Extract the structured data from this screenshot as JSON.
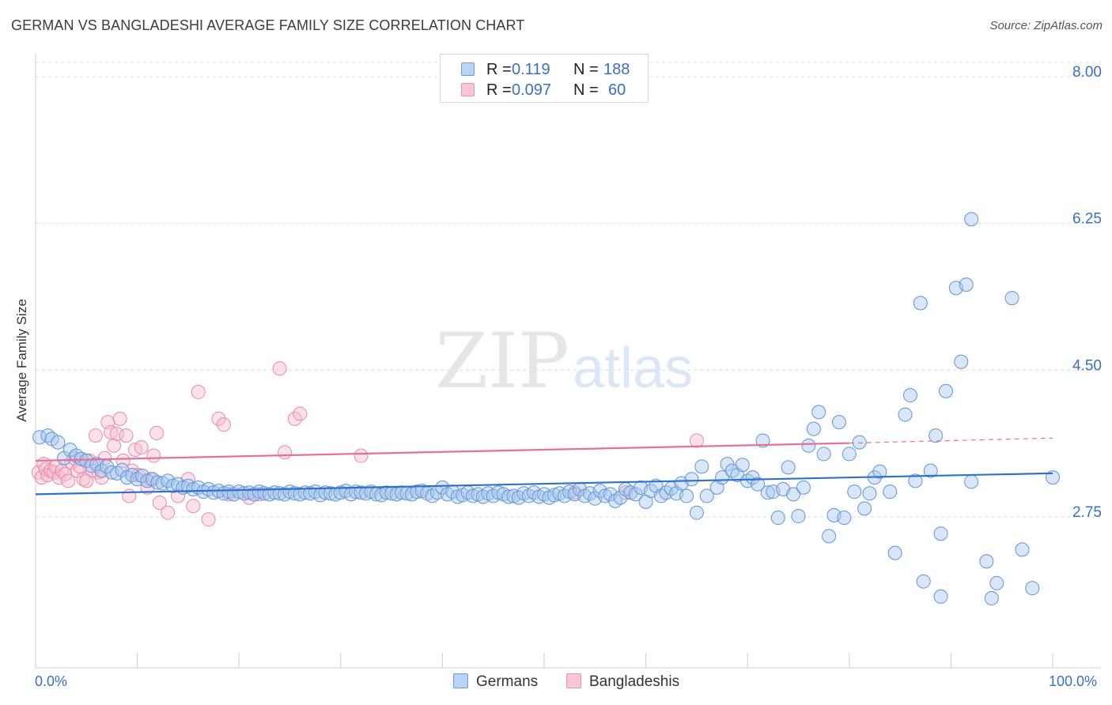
{
  "title": "GERMAN VS BANGLADESHI AVERAGE FAMILY SIZE CORRELATION CHART",
  "source": "Source: ZipAtlas.com",
  "watermark": {
    "part1": "ZIP",
    "part2": "atlas"
  },
  "legend_top": [
    {
      "r_label": "R =",
      "r_value": "0.119",
      "n_label": "N =",
      "n_value": "188"
    },
    {
      "r_label": "R =",
      "r_value": "0.097",
      "n_label": "N =",
      "n_value": "60"
    }
  ],
  "legend_bottom": [
    {
      "label": "Germans"
    },
    {
      "label": "Bangladeshis"
    }
  ],
  "x_labels": {
    "min": "0.0%",
    "max": "100.0%"
  },
  "colors": {
    "blue_fill": "#a8c8f0",
    "blue_stroke": "#5f95d6",
    "blue_line": "#2f6fce",
    "pink_fill": "#f7bfd0",
    "pink_stroke": "#e88aa8",
    "pink_line": "#e4719a",
    "axis_text": "#3a6fc4",
    "grid": "#dcdcdc"
  },
  "chart_data": {
    "type": "scatter",
    "title": "GERMAN VS BANGLADESHI AVERAGE FAMILY SIZE CORRELATION CHART",
    "xlabel": "",
    "ylabel": "Average Family Size",
    "xlim": [
      0,
      100
    ],
    "ylim": [
      1.1,
      8.3
    ],
    "y_ticks": [
      2.75,
      4.5,
      6.25,
      8.0
    ],
    "y_tick_labels": [
      "2.75",
      "4.50",
      "6.25",
      "8.00"
    ],
    "series": [
      {
        "name": "Germans",
        "r": 0.119,
        "n": 188,
        "trend": {
          "x": [
            0,
            100
          ],
          "y": [
            3.02,
            3.27
          ]
        },
        "points": [
          [
            0.4,
            3.7
          ],
          [
            1.2,
            3.72
          ],
          [
            1.6,
            3.68
          ],
          [
            2.2,
            3.64
          ],
          [
            2.8,
            3.45
          ],
          [
            3.4,
            3.55
          ],
          [
            4.0,
            3.48
          ],
          [
            4.5,
            3.44
          ],
          [
            5.0,
            3.42
          ],
          [
            5.5,
            3.36
          ],
          [
            6.0,
            3.38
          ],
          [
            6.5,
            3.3
          ],
          [
            7.0,
            3.35
          ],
          [
            7.5,
            3.28
          ],
          [
            8.0,
            3.27
          ],
          [
            8.5,
            3.31
          ],
          [
            9.0,
            3.22
          ],
          [
            9.5,
            3.25
          ],
          [
            10.0,
            3.2
          ],
          [
            10.5,
            3.24
          ],
          [
            11.0,
            3.18
          ],
          [
            11.5,
            3.2
          ],
          [
            12.0,
            3.16
          ],
          [
            12.5,
            3.15
          ],
          [
            13.0,
            3.18
          ],
          [
            13.5,
            3.12
          ],
          [
            14.0,
            3.14
          ],
          [
            14.5,
            3.1
          ],
          [
            15.0,
            3.12
          ],
          [
            15.5,
            3.08
          ],
          [
            16.0,
            3.1
          ],
          [
            16.5,
            3.05
          ],
          [
            17.0,
            3.08
          ],
          [
            17.5,
            3.04
          ],
          [
            18.0,
            3.06
          ],
          [
            18.5,
            3.03
          ],
          [
            19.0,
            3.05
          ],
          [
            19.5,
            3.02
          ],
          [
            20.0,
            3.05
          ],
          [
            20.5,
            3.03
          ],
          [
            21.0,
            3.04
          ],
          [
            21.5,
            3.02
          ],
          [
            22.0,
            3.05
          ],
          [
            22.5,
            3.03
          ],
          [
            23.0,
            3.02
          ],
          [
            23.5,
            3.04
          ],
          [
            24.0,
            3.03
          ],
          [
            24.5,
            3.02
          ],
          [
            25.0,
            3.05
          ],
          [
            25.5,
            3.03
          ],
          [
            26.0,
            3.02
          ],
          [
            26.5,
            3.04
          ],
          [
            27.0,
            3.03
          ],
          [
            27.5,
            3.05
          ],
          [
            28.0,
            3.01
          ],
          [
            28.5,
            3.04
          ],
          [
            29.0,
            3.03
          ],
          [
            29.5,
            3.02
          ],
          [
            30.0,
            3.04
          ],
          [
            30.5,
            3.06
          ],
          [
            31.0,
            3.02
          ],
          [
            31.5,
            3.05
          ],
          [
            32.0,
            3.04
          ],
          [
            32.5,
            3.03
          ],
          [
            33.0,
            3.05
          ],
          [
            33.5,
            3.02
          ],
          [
            34.0,
            3.01
          ],
          [
            34.5,
            3.04
          ],
          [
            35.0,
            3.03
          ],
          [
            35.5,
            3.02
          ],
          [
            36.0,
            3.04
          ],
          [
            36.5,
            3.03
          ],
          [
            37.0,
            3.02
          ],
          [
            37.5,
            3.05
          ],
          [
            38.0,
            3.06
          ],
          [
            38.5,
            3.03
          ],
          [
            39.0,
            3.0
          ],
          [
            39.5,
            3.04
          ],
          [
            40.0,
            3.1
          ],
          [
            40.5,
            3.02
          ],
          [
            41.0,
            3.05
          ],
          [
            41.5,
            2.99
          ],
          [
            42.0,
            3.01
          ],
          [
            42.5,
            3.04
          ],
          [
            43.0,
            3.0
          ],
          [
            43.5,
            3.02
          ],
          [
            44.0,
            2.99
          ],
          [
            44.5,
            3.03
          ],
          [
            45.0,
            3.0
          ],
          [
            45.5,
            3.04
          ],
          [
            46.0,
            3.02
          ],
          [
            46.5,
            2.99
          ],
          [
            47.0,
            3.0
          ],
          [
            47.5,
            2.98
          ],
          [
            48.0,
            3.03
          ],
          [
            48.5,
            3.0
          ],
          [
            49.0,
            3.04
          ],
          [
            49.5,
            2.99
          ],
          [
            50.0,
            3.02
          ],
          [
            50.5,
            2.98
          ],
          [
            51.0,
            3.01
          ],
          [
            51.5,
            3.03
          ],
          [
            52.0,
            3.0
          ],
          [
            52.5,
            3.05
          ],
          [
            53.0,
            3.02
          ],
          [
            53.5,
            3.08
          ],
          [
            54.0,
            3.0
          ],
          [
            54.5,
            3.03
          ],
          [
            55.0,
            2.97
          ],
          [
            55.5,
            3.06
          ],
          [
            56.0,
            3.0
          ],
          [
            56.5,
            3.02
          ],
          [
            57.0,
            2.94
          ],
          [
            57.5,
            2.98
          ],
          [
            58.0,
            3.08
          ],
          [
            58.5,
            3.04
          ],
          [
            59.0,
            3.02
          ],
          [
            59.5,
            3.1
          ],
          [
            60.0,
            2.93
          ],
          [
            60.5,
            3.06
          ],
          [
            61.0,
            3.12
          ],
          [
            61.5,
            3.0
          ],
          [
            62.0,
            3.04
          ],
          [
            62.5,
            3.09
          ],
          [
            63.0,
            3.03
          ],
          [
            63.5,
            3.15
          ],
          [
            64.0,
            3.0
          ],
          [
            64.5,
            3.2
          ],
          [
            65.0,
            2.8
          ],
          [
            65.5,
            3.35
          ],
          [
            66.0,
            3.0
          ],
          [
            67.0,
            3.1
          ],
          [
            67.5,
            3.22
          ],
          [
            68.0,
            3.38
          ],
          [
            68.5,
            3.3
          ],
          [
            69.0,
            3.25
          ],
          [
            69.5,
            3.37
          ],
          [
            70.0,
            3.18
          ],
          [
            70.5,
            3.22
          ],
          [
            71.0,
            3.14
          ],
          [
            71.5,
            3.66
          ],
          [
            72.0,
            3.04
          ],
          [
            72.5,
            3.05
          ],
          [
            73.0,
            2.74
          ],
          [
            73.5,
            3.08
          ],
          [
            74.0,
            3.34
          ],
          [
            74.5,
            3.02
          ],
          [
            75.0,
            2.76
          ],
          [
            75.5,
            3.1
          ],
          [
            76.0,
            3.6
          ],
          [
            76.5,
            3.8
          ],
          [
            77.0,
            4.0
          ],
          [
            77.5,
            3.5
          ],
          [
            78.0,
            2.52
          ],
          [
            78.5,
            2.77
          ],
          [
            79.0,
            3.88
          ],
          [
            79.5,
            2.74
          ],
          [
            80.0,
            3.5
          ],
          [
            80.5,
            3.05
          ],
          [
            81.0,
            3.64
          ],
          [
            81.5,
            2.85
          ],
          [
            82.0,
            3.03
          ],
          [
            82.5,
            3.22
          ],
          [
            83.0,
            3.29
          ],
          [
            84.0,
            3.05
          ],
          [
            84.5,
            2.32
          ],
          [
            85.5,
            3.97
          ],
          [
            86.0,
            4.2
          ],
          [
            86.5,
            3.18
          ],
          [
            87.0,
            5.3
          ],
          [
            87.3,
            1.98
          ],
          [
            88.0,
            3.3
          ],
          [
            88.5,
            3.72
          ],
          [
            89.0,
            2.55
          ],
          [
            89.0,
            1.8
          ],
          [
            89.5,
            4.25
          ],
          [
            90.5,
            5.48
          ],
          [
            91.0,
            4.6
          ],
          [
            91.5,
            5.52
          ],
          [
            92.0,
            3.17
          ],
          [
            92.0,
            6.3
          ],
          [
            93.5,
            2.22
          ],
          [
            94.0,
            1.78
          ],
          [
            94.5,
            1.96
          ],
          [
            96.0,
            5.36
          ],
          [
            97.0,
            2.36
          ],
          [
            98.0,
            1.9
          ],
          [
            100.0,
            3.22
          ]
        ]
      },
      {
        "name": "Bangladeshis",
        "r": 0.097,
        "n": 60,
        "trend": {
          "x": [
            0,
            80
          ],
          "y": [
            3.42,
            3.63
          ]
        },
        "trend_dashed": {
          "x": [
            80,
            100
          ],
          "y": [
            3.63,
            3.69
          ]
        },
        "points": [
          [
            0.3,
            3.28
          ],
          [
            0.6,
            3.22
          ],
          [
            0.8,
            3.38
          ],
          [
            1.0,
            3.32
          ],
          [
            1.2,
            3.25
          ],
          [
            1.5,
            3.3
          ],
          [
            1.8,
            3.28
          ],
          [
            2.0,
            3.35
          ],
          [
            2.3,
            3.22
          ],
          [
            2.6,
            3.3
          ],
          [
            2.9,
            3.26
          ],
          [
            3.2,
            3.18
          ],
          [
            3.5,
            3.4
          ],
          [
            3.8,
            3.45
          ],
          [
            4.1,
            3.3
          ],
          [
            4.4,
            3.35
          ],
          [
            4.7,
            3.2
          ],
          [
            5.0,
            3.18
          ],
          [
            5.3,
            3.42
          ],
          [
            5.6,
            3.3
          ],
          [
            5.9,
            3.72
          ],
          [
            6.2,
            3.28
          ],
          [
            6.5,
            3.22
          ],
          [
            6.8,
            3.45
          ],
          [
            7.1,
            3.88
          ],
          [
            7.4,
            3.76
          ],
          [
            7.7,
            3.6
          ],
          [
            8.0,
            3.74
          ],
          [
            8.3,
            3.92
          ],
          [
            8.6,
            3.42
          ],
          [
            8.9,
            3.72
          ],
          [
            9.2,
            3.0
          ],
          [
            9.5,
            3.3
          ],
          [
            9.8,
            3.55
          ],
          [
            10.1,
            3.25
          ],
          [
            10.4,
            3.58
          ],
          [
            11.0,
            3.1
          ],
          [
            11.3,
            3.2
          ],
          [
            11.6,
            3.48
          ],
          [
            11.9,
            3.75
          ],
          [
            12.2,
            2.92
          ],
          [
            13.0,
            2.8
          ],
          [
            14.0,
            3.0
          ],
          [
            15.0,
            3.2
          ],
          [
            15.5,
            2.88
          ],
          [
            16.0,
            4.24
          ],
          [
            17.0,
            2.72
          ],
          [
            18.0,
            3.92
          ],
          [
            18.5,
            3.85
          ],
          [
            19.0,
            3.02
          ],
          [
            21.0,
            2.98
          ],
          [
            22.0,
            3.02
          ],
          [
            24.5,
            3.52
          ],
          [
            24.0,
            4.52
          ],
          [
            25.5,
            3.92
          ],
          [
            26.0,
            3.98
          ],
          [
            32.0,
            3.48
          ],
          [
            53.0,
            3.04
          ],
          [
            58.0,
            3.04
          ],
          [
            65.0,
            3.66
          ]
        ]
      }
    ]
  }
}
